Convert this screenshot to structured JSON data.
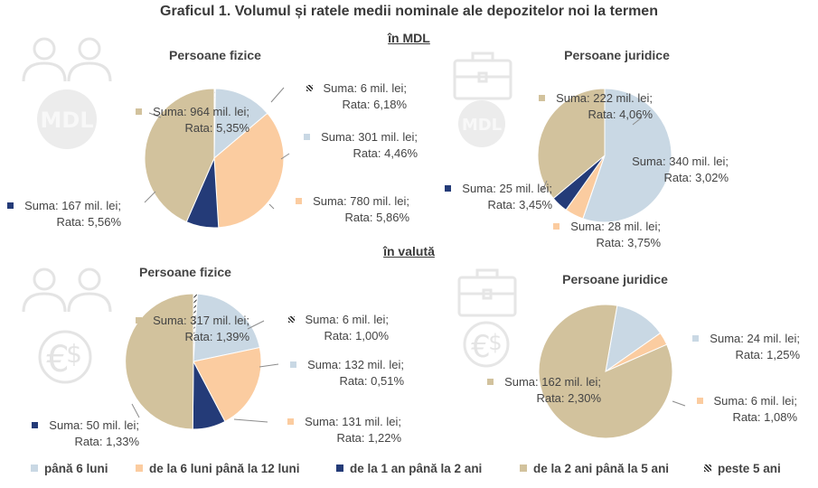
{
  "title": "Graficul 1. Volumul și ratele medii nominale ale depozitelor noi la termen",
  "sections": {
    "mdl": "în MDL",
    "valuta": "în valută"
  },
  "colors": {
    "p6": "#c9d8e4",
    "p12": "#fbcca0",
    "p24": "#243b78",
    "p60": "#d2c29d",
    "p60plus": "#5a5a5a",
    "leader": "#8c8c8c"
  },
  "legend": [
    {
      "key": "p6",
      "label": "până 6 luni"
    },
    {
      "key": "p12",
      "label": "de la 6 luni până la 12 luni"
    },
    {
      "key": "p24",
      "label": "de la 1 an până la 2 ani"
    },
    {
      "key": "p60",
      "label": "de la 2 ani până la 5 ani"
    },
    {
      "key": "p60plus",
      "label": "peste 5 ani"
    }
  ],
  "icons": [
    "people-mdl-icon",
    "briefcase-mdl-icon",
    "people-euro-dollar-icon",
    "briefcase-euro-dollar-icon"
  ],
  "chart_data": [
    {
      "type": "pie",
      "title": "Persoane fizice",
      "section": "în MDL",
      "slices": [
        {
          "key": "p60plus",
          "suma": "Suma:  6 mil. lei;",
          "rata": "Rata: 6,18%",
          "value": 6
        },
        {
          "key": "p6",
          "suma": "Suma:  301 mil. lei;",
          "rata": "Rata: 4,46%",
          "value": 301
        },
        {
          "key": "p12",
          "suma": "Suma:  780 mil. lei;",
          "rata": "Rata: 5,86%",
          "value": 780
        },
        {
          "key": "p24",
          "suma": "Suma:  167 mil. lei;",
          "rata": "Rata: 5,56%",
          "value": 167
        },
        {
          "key": "p60",
          "suma": "Suma:  964 mil. lei;",
          "rata": "Rata: 5,35%",
          "value": 964
        }
      ]
    },
    {
      "type": "pie",
      "title": "Persoane juridice",
      "section": "în MDL",
      "slices": [
        {
          "key": "p6",
          "suma": "Suma:  340 mil. lei;",
          "rata": "Rata: 3,02%",
          "value": 340
        },
        {
          "key": "p12",
          "suma": "Suma:  28 mil. lei;",
          "rata": "Rata: 3,75%",
          "value": 28
        },
        {
          "key": "p24",
          "suma": "Suma:  25 mil. lei;",
          "rata": "Rata: 3,45%",
          "value": 25
        },
        {
          "key": "p60",
          "suma": "Suma:  222 mil. lei;",
          "rata": "Rata: 4,06%",
          "value": 222
        }
      ]
    },
    {
      "type": "pie",
      "title": "Persoane fizice",
      "section": "în valută",
      "slices": [
        {
          "key": "p60plus",
          "suma": "Suma:  6 mil. lei;",
          "rata": "Rata: 1,00%",
          "value": 6
        },
        {
          "key": "p6",
          "suma": "Suma:  132 mil. lei;",
          "rata": "Rata: 0,51%",
          "value": 132
        },
        {
          "key": "p12",
          "suma": "Suma:  131 mil. lei;",
          "rata": "Rata: 1,22%",
          "value": 131
        },
        {
          "key": "p24",
          "suma": "Suma:  50 mil. lei;",
          "rata": "Rata: 1,33%",
          "value": 50
        },
        {
          "key": "p60",
          "suma": "Suma:  317 mil. lei;",
          "rata": "Rata: 1,39%",
          "value": 317
        }
      ]
    },
    {
      "type": "pie",
      "title": "Persoane juridice",
      "section": "în valută",
      "slices": [
        {
          "key": "p6",
          "suma": "Suma:  24 mil. lei;",
          "rata": "Rata: 1,25%",
          "value": 24
        },
        {
          "key": "p12",
          "suma": "Suma:  6 mil. lei;",
          "rata": "Rata: 1,08%",
          "value": 6
        },
        {
          "key": "p60",
          "suma": "Suma:  162 mil. lei;",
          "rata": "Rata: 2,30%",
          "value": 162
        }
      ]
    }
  ]
}
